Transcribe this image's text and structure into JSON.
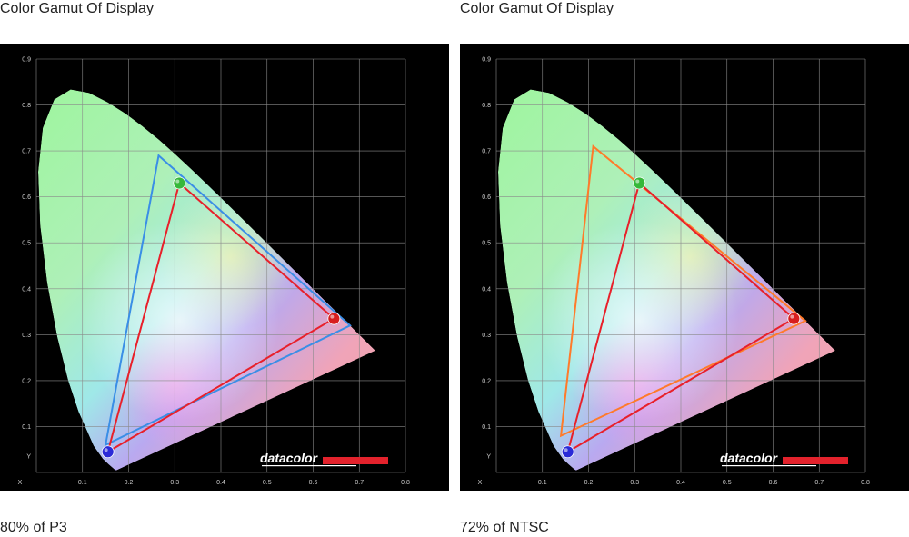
{
  "chart_data": [
    {
      "type": "scatter",
      "title": "Color Gamut Of Display",
      "caption": "80% of P3",
      "xlabel": "X",
      "ylabel": "Y",
      "xlim": [
        0,
        0.8
      ],
      "ylim": [
        0,
        0.9
      ],
      "x_ticks": [
        "X",
        "0.1",
        "0.2",
        "0.3",
        "0.4",
        "0.5",
        "0.6",
        "0.7",
        "0.8"
      ],
      "y_ticks": [
        "Y",
        "0.1",
        "0.2",
        "0.3",
        "0.4",
        "0.5",
        "0.6",
        "0.7",
        "0.8",
        "0.9"
      ],
      "grid": true,
      "logo": "datacolor",
      "series": [
        {
          "role": "reference",
          "color": "#3a8ee6",
          "points": [
            [
              0.68,
              0.32
            ],
            [
              0.265,
              0.69
            ],
            [
              0.15,
              0.06
            ]
          ]
        },
        {
          "role": "measured",
          "color": "#e8202a",
          "points": [
            [
              0.645,
              0.335
            ],
            [
              0.31,
              0.63
            ],
            [
              0.155,
              0.045
            ]
          ]
        }
      ]
    },
    {
      "type": "scatter",
      "title": "Color Gamut Of Display",
      "caption": "72% of NTSC",
      "xlabel": "X",
      "ylabel": "Y",
      "xlim": [
        0,
        0.8
      ],
      "ylim": [
        0,
        0.9
      ],
      "x_ticks": [
        "X",
        "0.1",
        "0.2",
        "0.3",
        "0.4",
        "0.5",
        "0.6",
        "0.7",
        "0.8"
      ],
      "y_ticks": [
        "Y",
        "0.1",
        "0.2",
        "0.3",
        "0.4",
        "0.5",
        "0.6",
        "0.7",
        "0.8",
        "0.9"
      ],
      "grid": true,
      "logo": "datacolor",
      "series": [
        {
          "role": "reference",
          "color": "#ff7a2a",
          "points": [
            [
              0.67,
              0.33
            ],
            [
              0.21,
              0.71
            ],
            [
              0.14,
              0.08
            ]
          ]
        },
        {
          "role": "measured",
          "color": "#e8202a",
          "points": [
            [
              0.645,
              0.335
            ],
            [
              0.31,
              0.63
            ],
            [
              0.155,
              0.045
            ]
          ]
        }
      ]
    }
  ]
}
